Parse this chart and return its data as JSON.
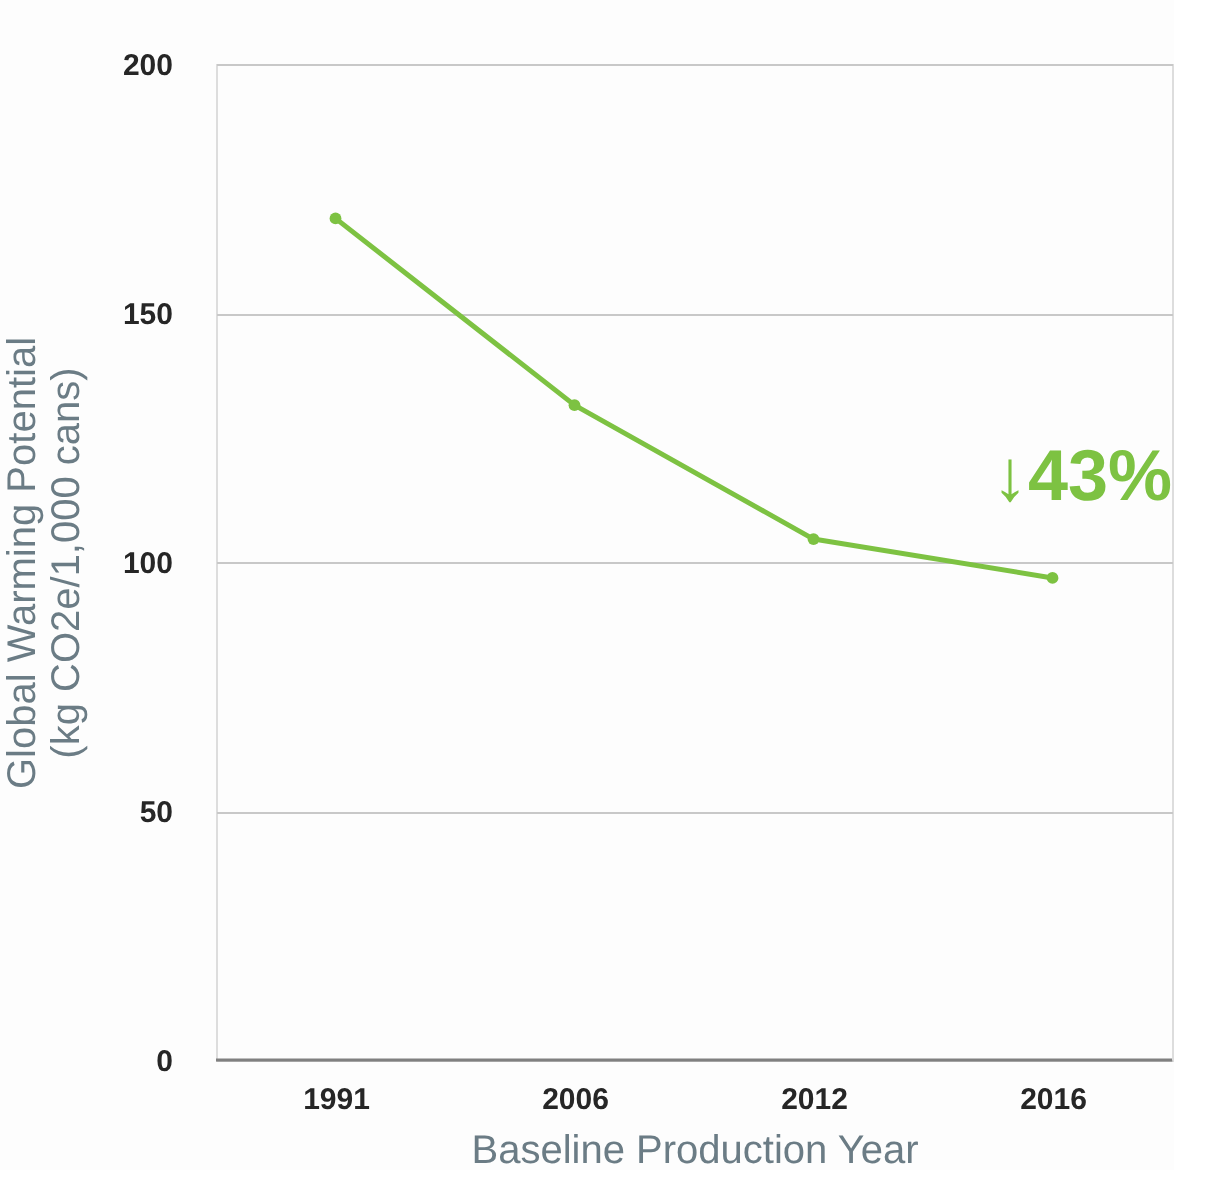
{
  "chart_data": {
    "type": "line",
    "xlabel": "Baseline Production Year",
    "ylabel": "Global Warming Potential\n(kg CO2e/1,000 cans)",
    "categories": [
      "1991",
      "2006",
      "2012",
      "2016"
    ],
    "series": [
      {
        "color": "#7dc242",
        "values": [
          169,
          131.5,
          104.6,
          96.8
        ]
      }
    ],
    "ylim": [
      0,
      200
    ],
    "yticks": [
      0,
      50,
      100,
      150,
      200
    ],
    "grid": "y",
    "marker": "circle",
    "line_style": "solid",
    "annotations": [
      "↓43%"
    ]
  }
}
